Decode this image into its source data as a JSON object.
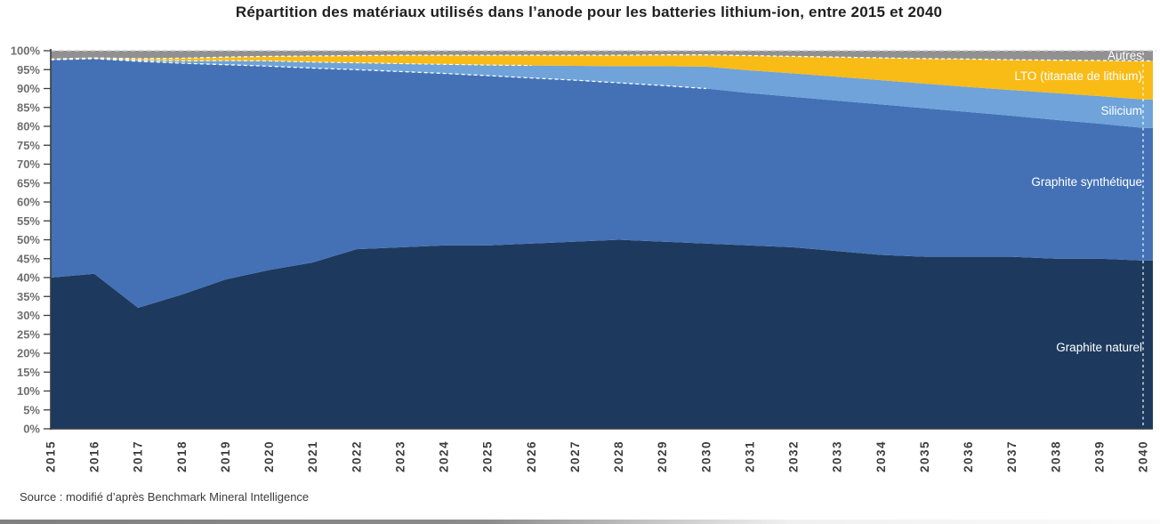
{
  "title": "Répartition des matériaux utilisés dans l’anode pour les batteries lithium-ion, entre 2015 et 2040",
  "source": "Source : modifié d’après Benchmark Mineral Intelligence",
  "chart_data": {
    "type": "area",
    "stacked": true,
    "title": "Répartition des matériaux utilisés dans l’anode pour les batteries lithium-ion, entre 2015 et 2040",
    "xlabel": "",
    "ylabel": "",
    "x": [
      2015,
      2016,
      2017,
      2018,
      2019,
      2020,
      2021,
      2022,
      2023,
      2024,
      2025,
      2026,
      2027,
      2028,
      2029,
      2030,
      2031,
      2032,
      2033,
      2034,
      2035,
      2036,
      2037,
      2038,
      2039,
      2040
    ],
    "y_axis": {
      "min": 0,
      "max": 100,
      "tick_step": 5,
      "tick_suffix": "%"
    },
    "grid": false,
    "legend_position": "inside-right",
    "series": [
      {
        "name": "Graphite naturel",
        "color": "#1d3a5e",
        "values": [
          40,
          41,
          32,
          35.5,
          39.5,
          42,
          44,
          47.5,
          48,
          48.5,
          48.5,
          49,
          49.5,
          50,
          49.5,
          49,
          48.5,
          48,
          47,
          46,
          45.5,
          45.5,
          45.5,
          45,
          45,
          44.5
        ]
      },
      {
        "name": "Graphite synthétique",
        "color": "#4471b5",
        "values": [
          57.6,
          56.9,
          65.2,
          61.2,
          56.8,
          53.9,
          51.4,
          47.5,
          46.5,
          45.5,
          44.9,
          43.8,
          42.7,
          41.5,
          41.3,
          41.0,
          40.3,
          39.8,
          39.8,
          39.8,
          39.3,
          38.3,
          37.3,
          36.7,
          35.7,
          35.1
        ]
      },
      {
        "name": "Silicium",
        "color": "#6fa3d9",
        "values": [
          0.1,
          0.1,
          0.3,
          0.6,
          1.1,
          1.4,
          1.6,
          1.8,
          2.1,
          2.4,
          2.8,
          3.3,
          3.8,
          4.4,
          5.1,
          5.8,
          6.0,
          6.2,
          6.3,
          6.4,
          6.5,
          6.6,
          6.8,
          7.1,
          7.3,
          7.5
        ]
      },
      {
        "name": "LTO (titanate de lithium)",
        "color": "#f9bb16",
        "values": [
          0.1,
          0.1,
          0.4,
          0.7,
          0.9,
          1.2,
          1.6,
          1.9,
          2.2,
          2.4,
          2.6,
          2.7,
          2.8,
          2.9,
          3.0,
          3.1,
          3.9,
          4.5,
          5.2,
          5.9,
          6.6,
          7.4,
          8.0,
          8.7,
          9.4,
          10.2
        ]
      },
      {
        "name": "Autres",
        "color": "#919191",
        "values": [
          2.2,
          1.9,
          2.1,
          2.0,
          1.7,
          1.5,
          1.4,
          1.3,
          1.2,
          1.2,
          1.2,
          1.2,
          1.2,
          1.2,
          1.1,
          1.1,
          1.3,
          1.5,
          1.7,
          1.9,
          2.1,
          2.2,
          2.4,
          2.5,
          2.6,
          2.7
        ]
      }
    ],
    "style": {
      "boundary_dash_color": "#ffffff",
      "top_border_dash_color": "#cccccc",
      "axis_color": "#3b3b3b",
      "y_label_color": "#6f6f6f",
      "x_label_color": "#3d3d3d"
    }
  }
}
